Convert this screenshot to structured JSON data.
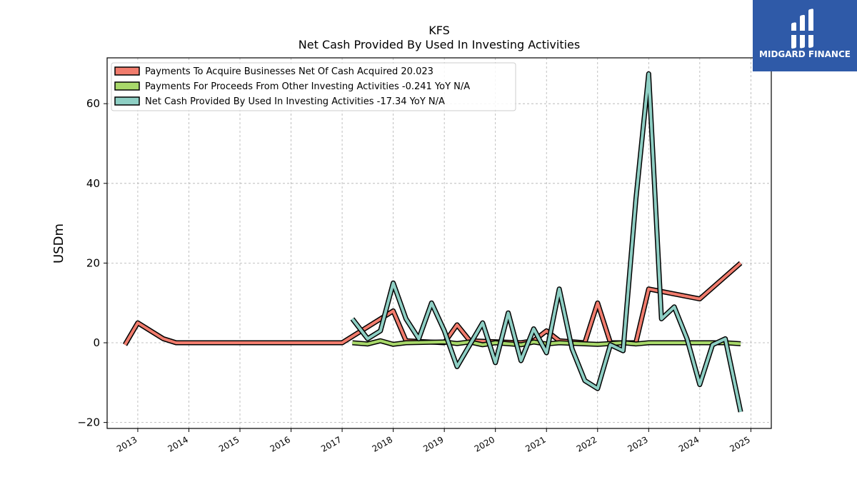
{
  "logo": {
    "text": "MIDGARD FINANCE",
    "bg": "#2f5aa8"
  },
  "chart_data": {
    "type": "line",
    "title": "KFS",
    "subtitle": "Net Cash Provided By Used In Investing Activities",
    "ylabel": "USDm",
    "xlabel": "",
    "xlim": [
      2012.4,
      2025.4
    ],
    "ylim": [
      -21.5,
      71.5
    ],
    "x_ticks": [
      2013,
      2014,
      2015,
      2016,
      2017,
      2018,
      2019,
      2020,
      2021,
      2022,
      2023,
      2024,
      2025
    ],
    "y_ticks": [
      -20,
      0,
      20,
      40,
      60
    ],
    "grid": true,
    "legend_position": "top-left",
    "series": [
      {
        "name": "Payments To Acquire Businesses Net Of Cash Acquired  20.023",
        "color": "#f17c6d",
        "points": [
          [
            2012.75,
            -0.5
          ],
          [
            2013.0,
            5.0
          ],
          [
            2013.5,
            1.0
          ],
          [
            2013.75,
            0.0
          ],
          [
            2017.0,
            0.0
          ],
          [
            2018.0,
            8.0
          ],
          [
            2018.25,
            0.5
          ],
          [
            2019.0,
            0.0
          ],
          [
            2019.25,
            4.5
          ],
          [
            2019.5,
            0.5
          ],
          [
            2020.5,
            0.0
          ],
          [
            2020.75,
            0.5
          ],
          [
            2021.0,
            3.0
          ],
          [
            2021.25,
            0.5
          ],
          [
            2021.75,
            0.0
          ],
          [
            2022.0,
            10.0
          ],
          [
            2022.25,
            0.0
          ],
          [
            2022.75,
            0.0
          ],
          [
            2023.0,
            13.5
          ],
          [
            2024.0,
            11.0
          ],
          [
            2024.8,
            20.0
          ]
        ]
      },
      {
        "name": "Payments For Proceeds From Other Investing Activities  -0.241 YoY N/A",
        "color": "#a8d86a",
        "points": [
          [
            2017.2,
            0.0
          ],
          [
            2017.5,
            -0.3
          ],
          [
            2017.75,
            0.5
          ],
          [
            2018.0,
            -0.4
          ],
          [
            2018.25,
            0.0
          ],
          [
            2019.0,
            0.2
          ],
          [
            2019.25,
            -0.2
          ],
          [
            2019.5,
            0.2
          ],
          [
            2019.75,
            -0.5
          ],
          [
            2020.0,
            0.0
          ],
          [
            2020.5,
            -0.5
          ],
          [
            2020.75,
            0.2
          ],
          [
            2021.0,
            -0.3
          ],
          [
            2021.25,
            0.0
          ],
          [
            2022.0,
            -0.4
          ],
          [
            2022.5,
            0.0
          ],
          [
            2022.75,
            -0.3
          ],
          [
            2023.0,
            0.0
          ],
          [
            2024.5,
            0.0
          ],
          [
            2024.8,
            -0.24
          ]
        ]
      },
      {
        "name": "Net Cash Provided By Used In Investing Activities  -17.34 YoY N/A",
        "color": "#8ecfc4",
        "points": [
          [
            2017.2,
            6.0
          ],
          [
            2017.5,
            1.0
          ],
          [
            2017.75,
            3.0
          ],
          [
            2018.0,
            15.0
          ],
          [
            2018.25,
            6.0
          ],
          [
            2018.5,
            1.0
          ],
          [
            2018.75,
            10.0
          ],
          [
            2019.0,
            3.0
          ],
          [
            2019.25,
            -6.0
          ],
          [
            2019.5,
            -0.5
          ],
          [
            2019.75,
            5.0
          ],
          [
            2020.0,
            -5.0
          ],
          [
            2020.25,
            7.5
          ],
          [
            2020.5,
            -4.5
          ],
          [
            2020.75,
            3.5
          ],
          [
            2021.0,
            -2.5
          ],
          [
            2021.25,
            13.5
          ],
          [
            2021.5,
            -1.5
          ],
          [
            2021.75,
            -9.5
          ],
          [
            2022.0,
            -11.5
          ],
          [
            2022.25,
            -0.5
          ],
          [
            2022.5,
            -2.0
          ],
          [
            2022.75,
            36.0
          ],
          [
            2023.0,
            67.5
          ],
          [
            2023.25,
            6.0
          ],
          [
            2023.5,
            9.0
          ],
          [
            2023.75,
            1.0
          ],
          [
            2024.0,
            -10.5
          ],
          [
            2024.25,
            -0.5
          ],
          [
            2024.5,
            1.0
          ],
          [
            2024.8,
            -17.34
          ]
        ]
      }
    ]
  }
}
